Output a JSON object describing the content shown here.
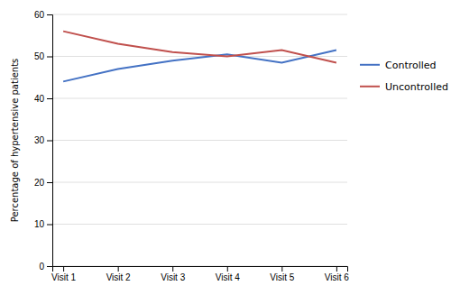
{
  "chart_data": {
    "type": "line",
    "ylabel": "Percentage of hypertensive patients",
    "categories": [
      "Visit 1",
      "Visit 2",
      "Visit 3",
      "Visit 4",
      "Visit 5",
      "Visit 6"
    ],
    "series": [
      {
        "name": "Controlled",
        "color": "#4472C4",
        "values": [
          44,
          47,
          49,
          50.5,
          48.5,
          51.5
        ]
      },
      {
        "name": "Uncontrolled",
        "color": "#C0504D",
        "values": [
          56,
          53,
          51,
          50,
          51.5,
          48.5
        ]
      }
    ],
    "ylim": [
      0,
      60
    ],
    "yticks": [
      0,
      10,
      20,
      30,
      40,
      50,
      60
    ],
    "grid": true,
    "legend": "right"
  }
}
